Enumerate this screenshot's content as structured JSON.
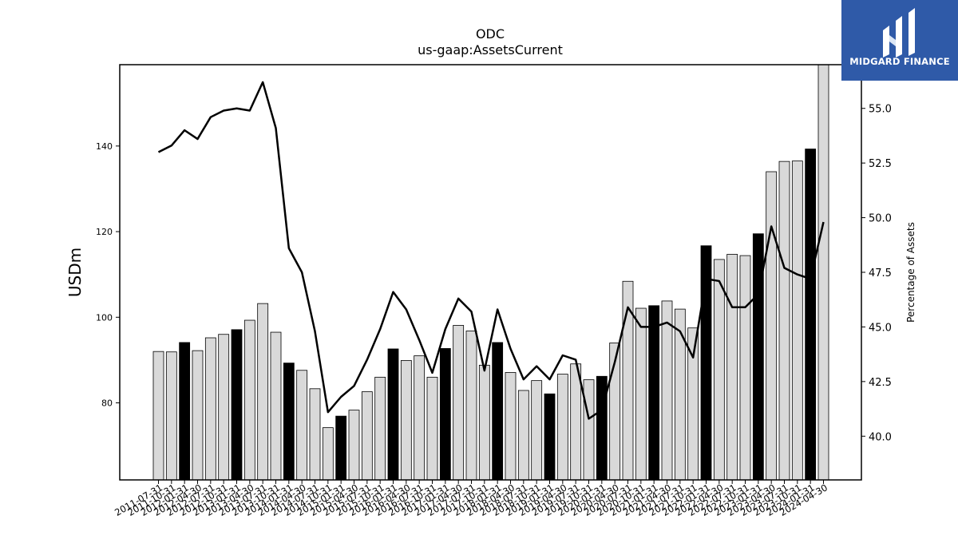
{
  "chart_data": {
    "type": "bar+line",
    "title": "ODC",
    "subtitle": "us-gaap:AssetsCurrent",
    "ylabel": "USDm",
    "y2label": "Percentage of Assets",
    "ylim": [
      62,
      159
    ],
    "y2lim": [
      38.0,
      57.0
    ],
    "yticks": [
      80,
      100,
      120,
      140
    ],
    "y2ticks": [
      40.0,
      42.5,
      45.0,
      47.5,
      50.0,
      52.5,
      55.0
    ],
    "categories": [
      "2011-07-31",
      "2011-10-31",
      "2012-01-31",
      "2012-04-30",
      "2012-07-31",
      "2012-10-31",
      "2013-01-31",
      "2013-04-30",
      "2013-07-31",
      "2013-10-31",
      "2014-01-31",
      "2014-04-30",
      "2014-07-31",
      "2014-10-31",
      "2015-01-31",
      "2015-04-30",
      "2015-07-31",
      "2015-10-31",
      "2016-01-31",
      "2016-04-30",
      "2016-07-31",
      "2016-10-31",
      "2017-01-31",
      "2017-04-30",
      "2017-07-31",
      "2017-10-31",
      "2018-01-31",
      "2018-04-30",
      "2018-07-31",
      "2018-10-31",
      "2019-01-31",
      "2019-04-30",
      "2019-07-31",
      "2019-10-31",
      "2020-01-31",
      "2020-04-30",
      "2020-07-31",
      "2020-10-31",
      "2021-01-31",
      "2021-04-30",
      "2021-07-31",
      "2021-10-31",
      "2022-01-31",
      "2022-04-30",
      "2022-07-31",
      "2022-10-31",
      "2023-01-31",
      "2023-04-30",
      "2023-07-31",
      "2023-10-31",
      "2024-01-31",
      "2024-04-30"
    ],
    "series": [
      {
        "kind": "bar",
        "axis": "left",
        "values": [
          92.0,
          91.9,
          94.1,
          92.2,
          95.2,
          96.0,
          97.1,
          99.3,
          103.2,
          96.5,
          89.3,
          87.6,
          83.3,
          74.2,
          76.9,
          78.3,
          82.6,
          86.0,
          92.6,
          89.9,
          91.0,
          86.0,
          92.7,
          98.1,
          96.8,
          88.8,
          94.1,
          87.1,
          82.9,
          85.2,
          82.1,
          86.7,
          89.1,
          85.4,
          86.2,
          94.0,
          108.4,
          102.1,
          102.7,
          103.8,
          101.9,
          97.5,
          116.7,
          113.5,
          114.7,
          114.4,
          119.5,
          134.0,
          136.4,
          136.5,
          139.3,
          159.0
        ]
      },
      {
        "kind": "line",
        "axis": "right",
        "values": [
          53.0,
          53.3,
          54.0,
          53.6,
          54.6,
          54.9,
          55.0,
          54.9,
          56.2,
          54.1,
          48.6,
          47.5,
          44.8,
          41.1,
          41.8,
          42.3,
          43.5,
          44.9,
          46.6,
          45.8,
          44.4,
          42.9,
          44.9,
          46.3,
          45.7,
          43.0,
          45.8,
          44.0,
          42.6,
          43.2,
          42.6,
          43.7,
          43.5,
          40.8,
          41.2,
          43.4,
          45.9,
          45.0,
          45.0,
          45.2,
          44.8,
          43.6,
          47.2,
          47.1,
          45.9,
          45.9,
          46.5,
          49.6,
          47.7,
          47.4,
          47.2,
          49.8
        ]
      }
    ],
    "highlight_indices": [
      2,
      6,
      10,
      14,
      18,
      22,
      26,
      30,
      34,
      38,
      42,
      46,
      50
    ],
    "colors": {
      "bar": "#d9d9d9",
      "bar_highlight": "#000000",
      "line": "#000000"
    },
    "grid": false,
    "legend": "none"
  },
  "logo": {
    "text": "MIDGARD FINANCE"
  }
}
